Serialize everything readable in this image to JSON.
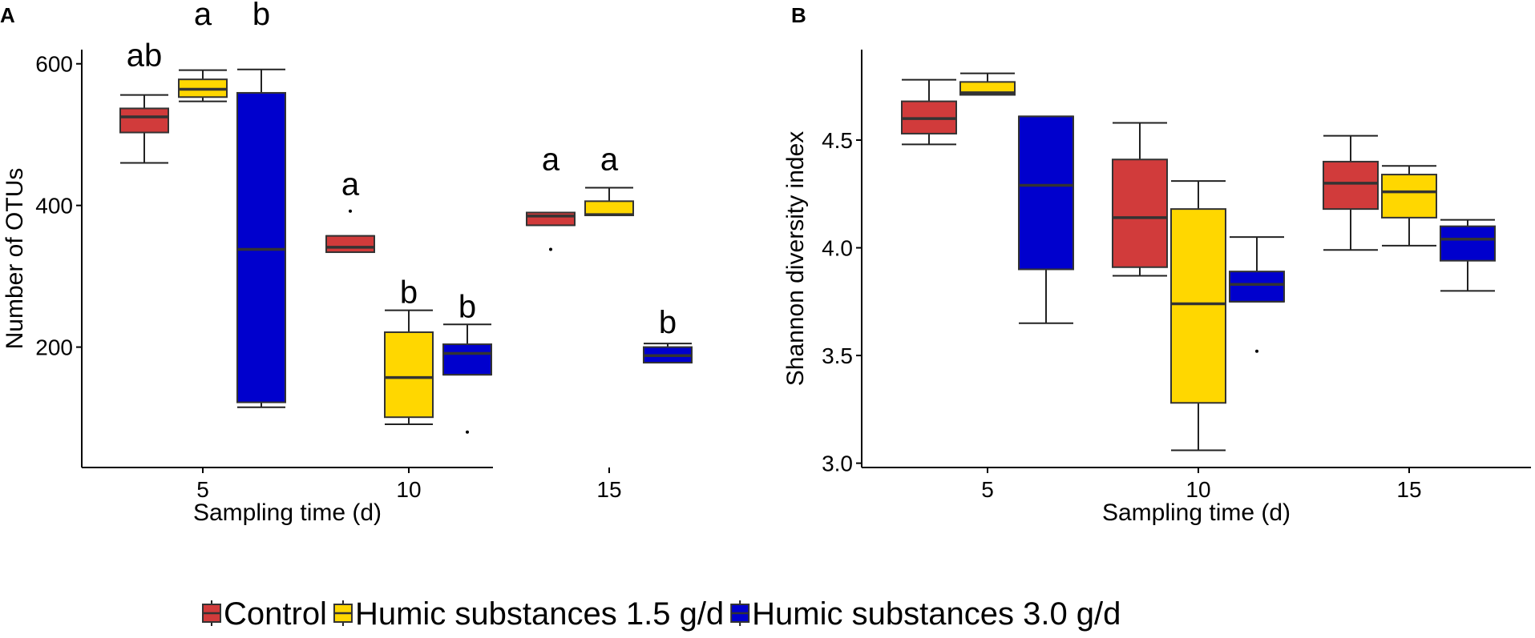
{
  "figure": {
    "legend": {
      "items": [
        {
          "label": "Control",
          "color": "#d13b3b"
        },
        {
          "label": "Humic substances 1.5 g/d",
          "color": "#ffd700"
        },
        {
          "label": "Humic substances 3.0 g/d",
          "color": "#0000cd"
        }
      ]
    }
  },
  "chart_data": [
    {
      "type": "box",
      "panel_label": "A",
      "xlabel": "Sampling time (d)",
      "ylabel": "Number of OTUs",
      "categories": [
        "5",
        "10",
        "15"
      ],
      "ylim": [
        30,
        620
      ],
      "yticks": [
        200,
        400,
        600
      ],
      "ytick_labels": [
        "200",
        "400",
        "600"
      ],
      "series": [
        {
          "name": "Control",
          "boxes": [
            {
              "whislo": 460,
              "q1": 503,
              "med": 525,
              "q3": 537,
              "whishi": 556,
              "outliers": []
            },
            {
              "whislo": 334,
              "q1": 334,
              "med": 341,
              "q3": 357,
              "whishi": 357,
              "outliers": [
                392
              ]
            },
            {
              "whislo": 372,
              "q1": 372,
              "med": 385,
              "q3": 390,
              "whishi": 390,
              "outliers": [
                338
              ]
            }
          ]
        },
        {
          "name": "Humic substances 1.5 g/d",
          "boxes": [
            {
              "whislo": 547,
              "q1": 553,
              "med": 564,
              "q3": 578,
              "whishi": 591,
              "outliers": []
            },
            {
              "whislo": 91,
              "q1": 101,
              "med": 157,
              "q3": 221,
              "whishi": 252,
              "outliers": []
            },
            {
              "whislo": 386,
              "q1": 386,
              "med": 387,
              "q3": 406,
              "whishi": 425,
              "outliers": []
            }
          ]
        },
        {
          "name": "Humic substances 3.0 g/d",
          "boxes": [
            {
              "whislo": 115,
              "q1": 122,
              "med": 338,
              "q3": 559,
              "whishi": 592,
              "outliers": []
            },
            {
              "whislo": 161,
              "q1": 161,
              "med": 191,
              "q3": 204,
              "whishi": 232,
              "outliers": [
                80
              ]
            },
            {
              "whislo": 178,
              "q1": 178,
              "med": 188,
              "q3": 200,
              "whishi": 205,
              "outliers": []
            }
          ]
        }
      ],
      "annotations": [
        {
          "text": "ab",
          "group": 0,
          "series": 0,
          "value": 597
        },
        {
          "text": "a",
          "group": 0,
          "series": 1,
          "value": 655
        },
        {
          "text": "b",
          "group": 0,
          "series": 2,
          "value": 655
        },
        {
          "text": "a",
          "group": 1,
          "series": 0,
          "value": 415
        },
        {
          "text": "b",
          "group": 1,
          "series": 1,
          "value": 262
        },
        {
          "text": "b",
          "group": 1,
          "series": 2,
          "value": 242
        },
        {
          "text": "a",
          "group": 2,
          "series": 0,
          "value": 450
        },
        {
          "text": "a",
          "group": 2,
          "series": 1,
          "value": 450
        },
        {
          "text": "b",
          "group": 2,
          "series": 2,
          "value": 220
        }
      ]
    },
    {
      "type": "box",
      "panel_label": "B",
      "xlabel": "Sampling time (d)",
      "ylabel": "Shannon diversity index",
      "categories": [
        "5",
        "10",
        "15"
      ],
      "ylim": [
        2.98,
        4.92
      ],
      "yticks": [
        3.0,
        3.5,
        4.0,
        4.5
      ],
      "ytick_labels": [
        "3.0",
        "3.5",
        "4.0",
        "4.5"
      ],
      "series": [
        {
          "name": "Control",
          "boxes": [
            {
              "whislo": 4.48,
              "q1": 4.53,
              "med": 4.6,
              "q3": 4.68,
              "whishi": 4.78,
              "outliers": []
            },
            {
              "whislo": 3.87,
              "q1": 3.91,
              "med": 4.14,
              "q3": 4.41,
              "whishi": 4.58,
              "outliers": []
            },
            {
              "whislo": 3.99,
              "q1": 4.18,
              "med": 4.3,
              "q3": 4.4,
              "whishi": 4.52,
              "outliers": []
            }
          ]
        },
        {
          "name": "Humic substances 1.5 g/d",
          "boxes": [
            {
              "whislo": 4.71,
              "q1": 4.71,
              "med": 4.72,
              "q3": 4.77,
              "whishi": 4.81,
              "outliers": []
            },
            {
              "whislo": 3.06,
              "q1": 3.28,
              "med": 3.74,
              "q3": 4.18,
              "whishi": 4.31,
              "outliers": []
            },
            {
              "whislo": 4.01,
              "q1": 4.14,
              "med": 4.26,
              "q3": 4.34,
              "whishi": 4.38,
              "outliers": []
            }
          ]
        },
        {
          "name": "Humic substances 3.0 g/d",
          "boxes": [
            {
              "whislo": 3.65,
              "q1": 3.9,
              "med": 4.29,
              "q3": 4.61,
              "whishi": 4.61,
              "outliers": []
            },
            {
              "whislo": 3.75,
              "q1": 3.75,
              "med": 3.83,
              "q3": 3.89,
              "whishi": 4.05,
              "outliers": [
                3.52
              ]
            },
            {
              "whislo": 3.8,
              "q1": 3.94,
              "med": 4.04,
              "q3": 4.1,
              "whishi": 4.13,
              "outliers": []
            }
          ]
        }
      ],
      "annotations": []
    }
  ]
}
